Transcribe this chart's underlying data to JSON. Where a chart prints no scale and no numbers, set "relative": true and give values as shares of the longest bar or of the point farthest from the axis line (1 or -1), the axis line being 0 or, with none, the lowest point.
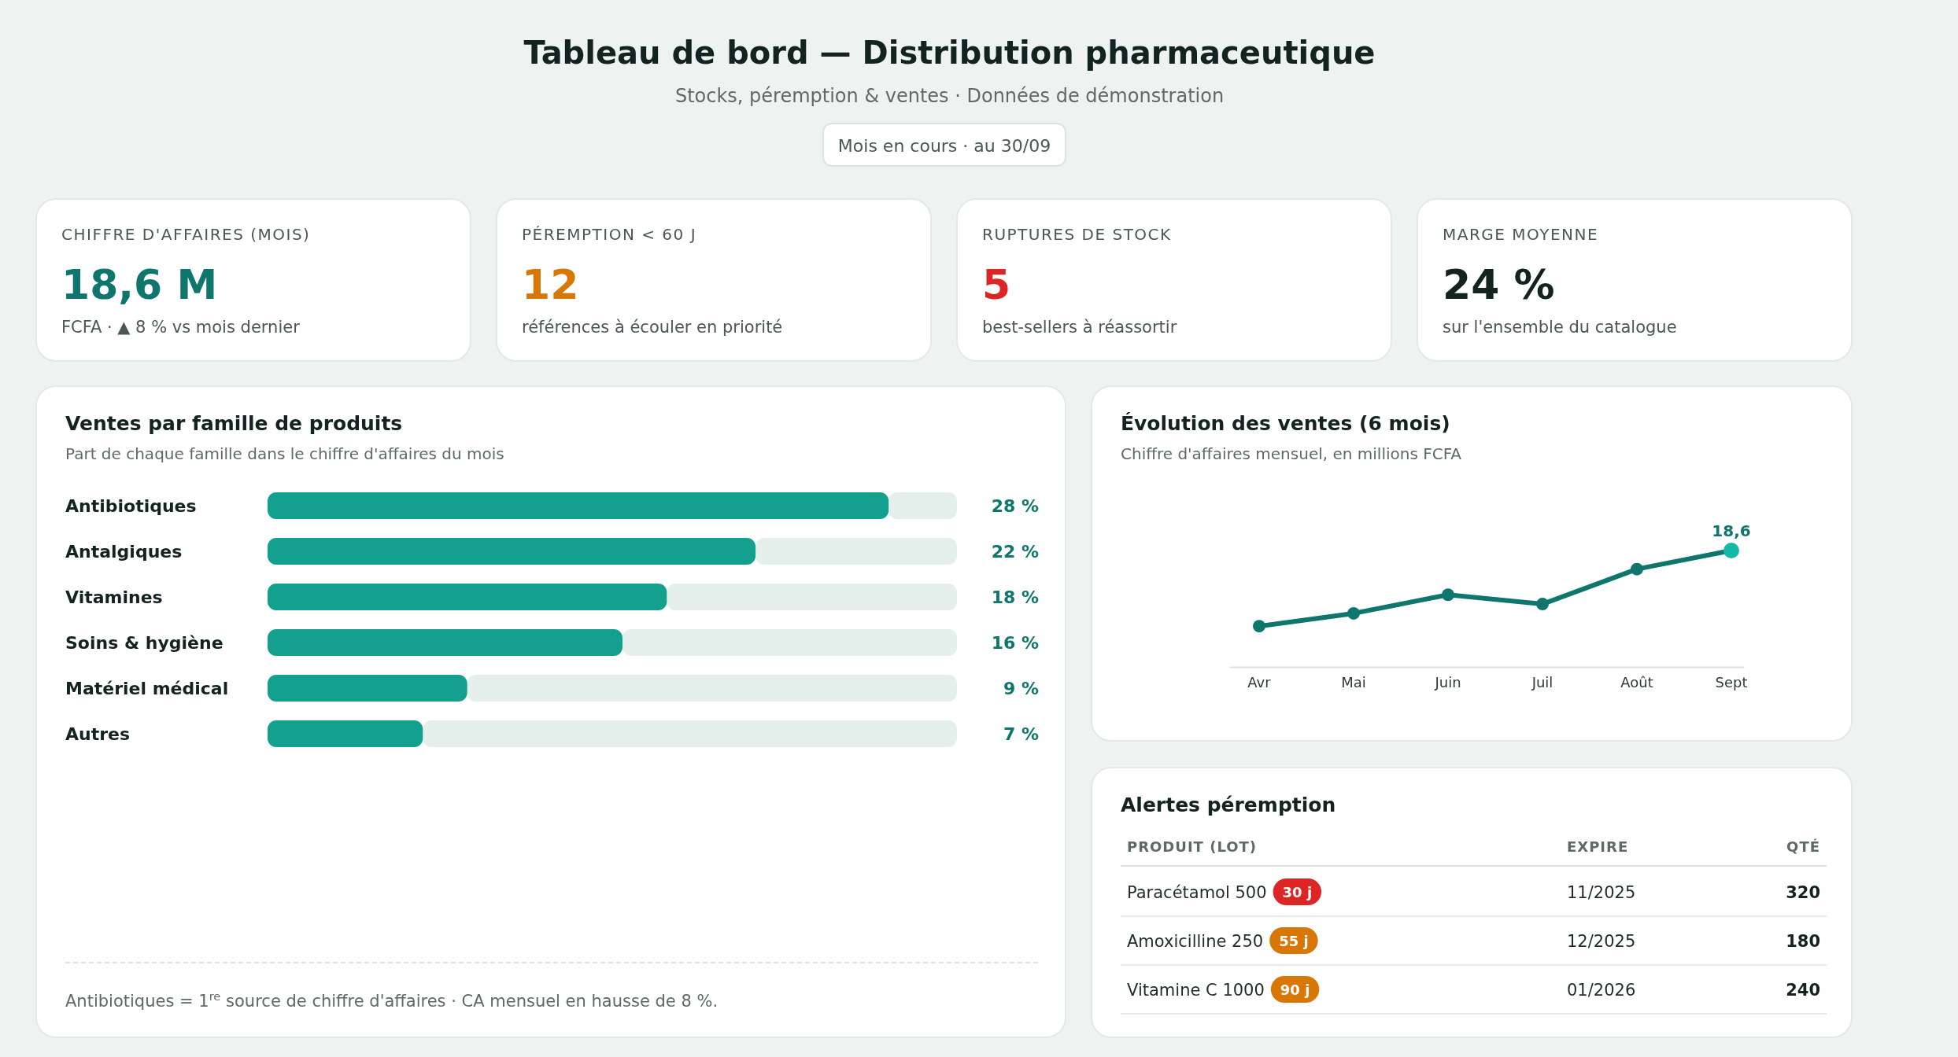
{
  "chart_data": [
    {
      "type": "other",
      "title": "Tableau de bord — Distribution pharmaceutique",
      "subtitle": "Stocks, péremption & ventes · Données de démonstration",
      "annotations": [
        "Mois en cours · au 30/09",
        "CHIFFRE D'AFFAIRES (MOIS)",
        "18,6 M",
        "FCFA · ▲ 8 % vs mois dernier",
        "PÉREMPTION < 60 J",
        "12",
        "références à écouler en priorité",
        "RUPTURES DE STOCK",
        "5",
        "best-sellers à réassortir",
        "MARGE MOYENNE",
        "24 %",
        "sur l'ensemble du catalogue"
      ]
    },
    {
      "type": "bar",
      "orientation": "horizontal",
      "title": "Ventes par famille de produits",
      "subtitle": "Part de chaque famille dans le chiffre d'affaires du mois",
      "categories": [
        "Antibiotiques",
        "Antalgiques",
        "Vitamines",
        "Soins & hygiène",
        "Matériel médical",
        "Autres"
      ],
      "values": [
        28,
        22,
        18,
        16,
        9,
        7
      ],
      "color": "#13a08e",
      "value_labels": [
        "28 %",
        "22 %",
        "18 %",
        "16 %",
        "9 %",
        "7 %"
      ],
      "annotations": [
        "Antibiotiques = 1$^{re}$ source de chiffre d'affaires · CA mensuel en hausse de 8 %."
      ]
    },
    {
      "type": "line",
      "title": "Évolution des ventes (6 mois)",
      "subtitle": "Chiffre d'affaires mensuel, en millions FCFA",
      "categories": [
        "Avr",
        "Mai",
        "Juin",
        "Juil",
        "Août",
        "Sept"
      ],
      "relative": true,
      "annotations": [
        "18,6"
      ],
      "marker": "circle",
      "line_style": "solid",
      "series": [
        {
          "color": "#0f766e",
          "colors": [
            "#0f766e",
            "#0f766e",
            "#0f766e",
            "#0f766e",
            "#0f766e",
            "#14b8a6"
          ],
          "values": [
            0.35,
            0.46,
            0.62,
            0.54,
            0.84,
            1
          ]
        }
      ]
    },
    {
      "type": "other",
      "title": "Alertes péremption",
      "annotations": [
        "PRODUIT (LOT)",
        "EXPIRE",
        "QTÉ",
        "Paracétamol 500",
        "30 j",
        "11/2025",
        "320",
        "Amoxicilline 250",
        "55 j",
        "12/2025",
        "180",
        "Vitamine C 1000",
        "90 j",
        "01/2026",
        "240"
      ]
    }
  ]
}
